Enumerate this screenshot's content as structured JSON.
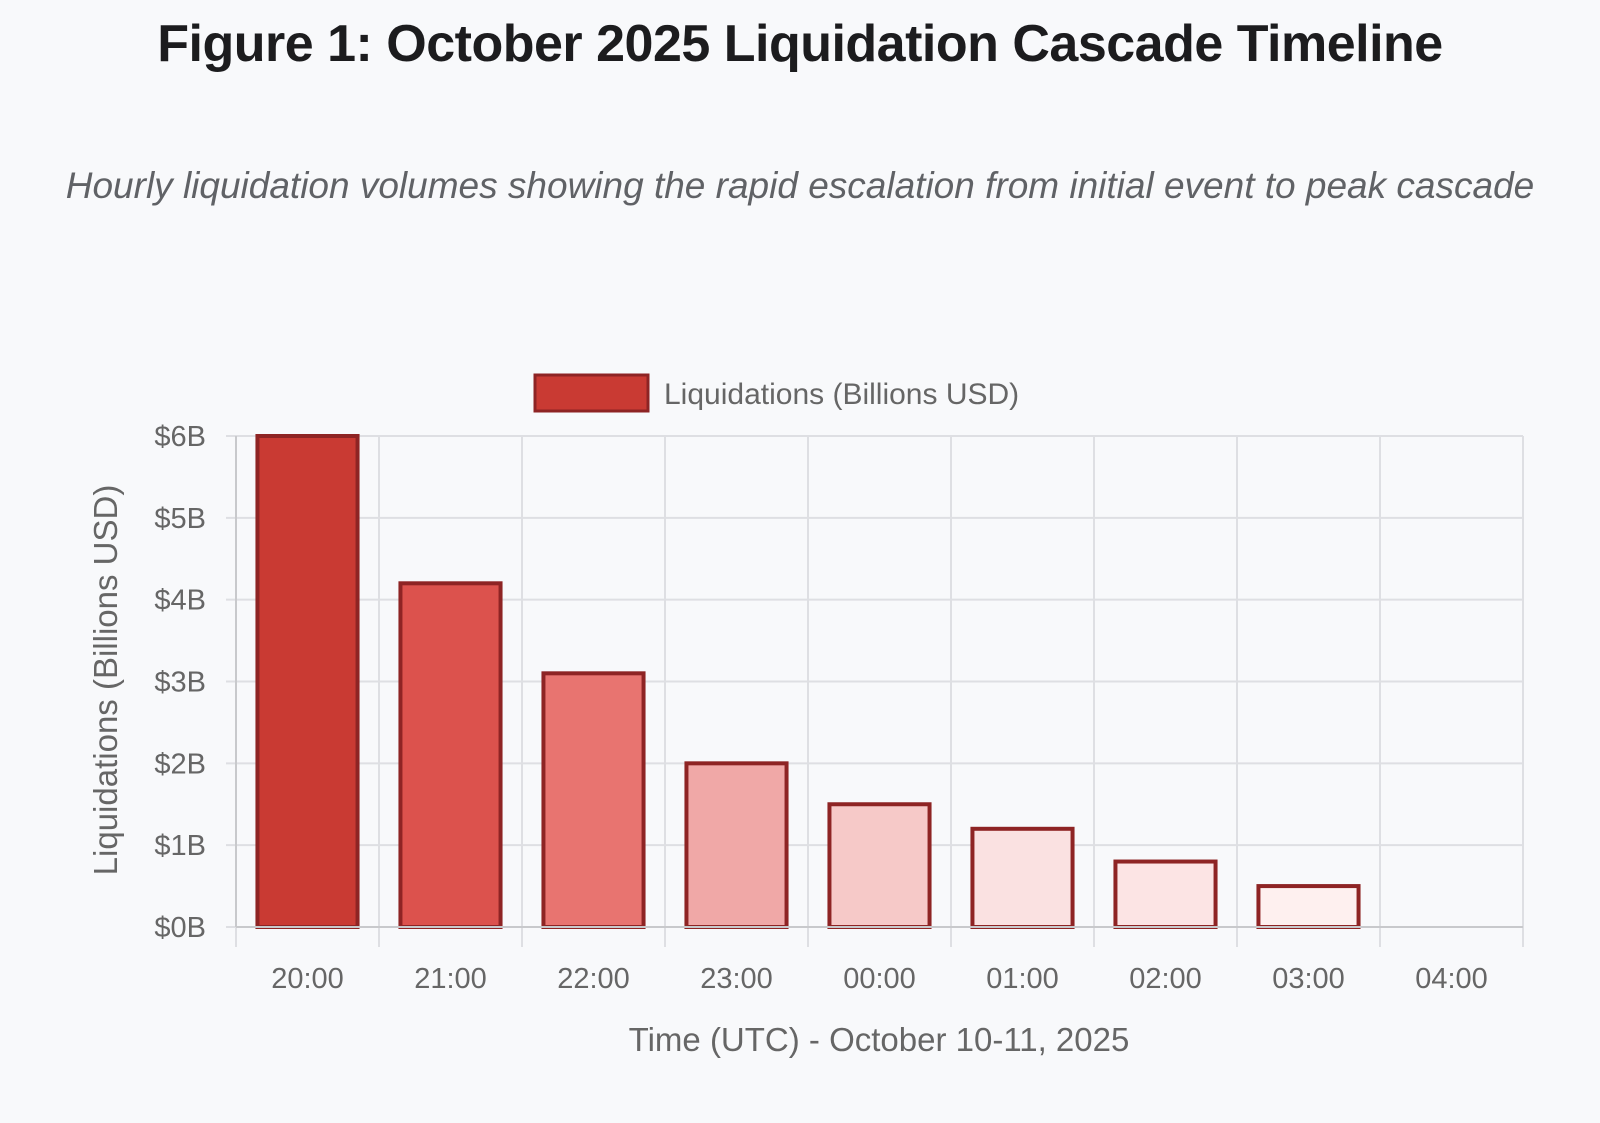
{
  "header": {
    "title": "Figure 1: October 2025 Liquidation Cascade Timeline",
    "subtitle": "Hourly liquidation volumes showing the rapid escalation from initial event to peak cascade"
  },
  "chart_data": {
    "type": "bar",
    "title": "Figure 1: October 2025 Liquidation Cascade Timeline",
    "subtitle": "Hourly liquidation volumes showing the rapid escalation from initial event to peak cascade",
    "categories": [
      "20:00",
      "21:00",
      "22:00",
      "23:00",
      "00:00",
      "01:00",
      "02:00",
      "03:00",
      "04:00"
    ],
    "series": [
      {
        "name": "Liquidations (Billions USD)",
        "values": [
          6.0,
          4.2,
          3.1,
          2.0,
          1.5,
          1.2,
          0.8,
          0.5,
          0
        ],
        "colors": [
          "#c93a33",
          "#dc524d",
          "#e87470",
          "#f0a8a7",
          "#f6c9c8",
          "#fae1e1",
          "#fce4e4",
          "#fef0ef",
          "#fef5f5"
        ],
        "border_color": "#8e2424"
      }
    ],
    "xlabel": "Time (UTC) - October 10-11, 2025",
    "ylabel": "Liquidations (Billions USD)",
    "ylim": [
      0,
      6
    ],
    "yticks": [
      0,
      1,
      2,
      3,
      4,
      5,
      6
    ],
    "ytick_labels": [
      "$0B",
      "$1B",
      "$2B",
      "$3B",
      "$4B",
      "$5B",
      "$6B"
    ],
    "legend": {
      "position": "top-center",
      "label": "Liquidations (Billions USD)",
      "color": "#c93a33"
    },
    "grid": true
  }
}
